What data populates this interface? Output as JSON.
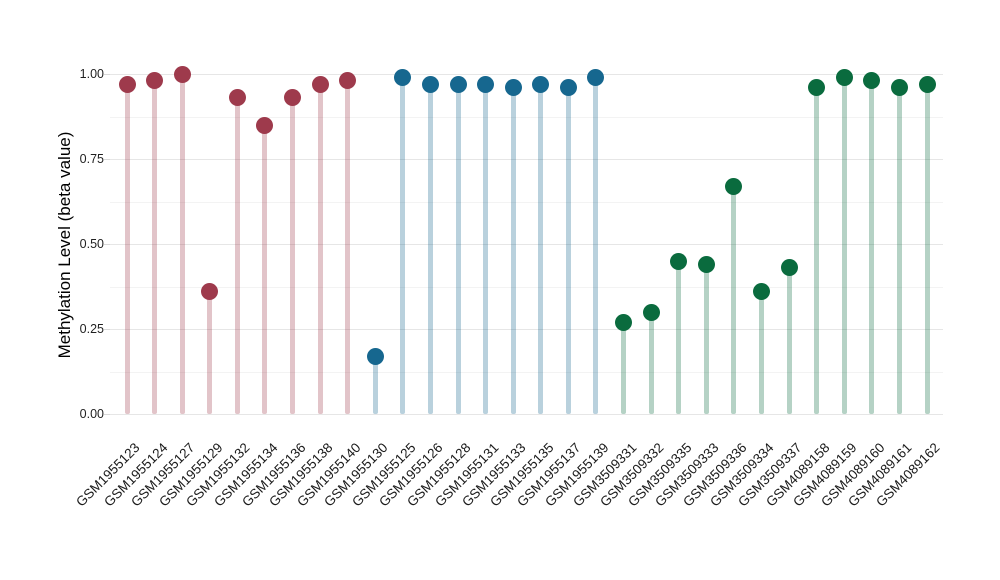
{
  "chart_data": {
    "type": "lollipop",
    "title": "",
    "xlabel": "",
    "ylabel": "Methylation Level (beta value)",
    "ylim": [
      0,
      1.0
    ],
    "grid": true,
    "legend_position": "none",
    "yticks": [
      {
        "value": 0.0,
        "label": "0.00"
      },
      {
        "value": 0.25,
        "label": "0.25"
      },
      {
        "value": 0.5,
        "label": "0.50"
      },
      {
        "value": 0.75,
        "label": "0.75"
      },
      {
        "value": 1.0,
        "label": "1.00"
      }
    ],
    "minor_yticks": [
      0.125,
      0.375,
      0.625,
      0.875
    ],
    "groups": {
      "g1": {
        "color": "#9E3A4C"
      },
      "g2": {
        "color": "#16678F"
      },
      "g3": {
        "color": "#0A6B3E"
      }
    },
    "points": [
      {
        "sample": "GSM1955123",
        "value": 0.97,
        "group": "g1"
      },
      {
        "sample": "GSM1955124",
        "value": 0.98,
        "group": "g1"
      },
      {
        "sample": "GSM1955127",
        "value": 1.0,
        "group": "g1"
      },
      {
        "sample": "GSM1955129",
        "value": 0.36,
        "group": "g1"
      },
      {
        "sample": "GSM1955132",
        "value": 0.93,
        "group": "g1"
      },
      {
        "sample": "GSM1955134",
        "value": 0.85,
        "group": "g1"
      },
      {
        "sample": "GSM1955136",
        "value": 0.93,
        "group": "g1"
      },
      {
        "sample": "GSM1955138",
        "value": 0.97,
        "group": "g1"
      },
      {
        "sample": "GSM1955140",
        "value": 0.98,
        "group": "g1"
      },
      {
        "sample": "GSM1955130",
        "value": 0.17,
        "group": "g2"
      },
      {
        "sample": "GSM1955125",
        "value": 0.99,
        "group": "g2"
      },
      {
        "sample": "GSM1955126",
        "value": 0.97,
        "group": "g2"
      },
      {
        "sample": "GSM1955128",
        "value": 0.97,
        "group": "g2"
      },
      {
        "sample": "GSM1955131",
        "value": 0.97,
        "group": "g2"
      },
      {
        "sample": "GSM1955133",
        "value": 0.96,
        "group": "g2"
      },
      {
        "sample": "GSM1955135",
        "value": 0.97,
        "group": "g2"
      },
      {
        "sample": "GSM1955137",
        "value": 0.96,
        "group": "g2"
      },
      {
        "sample": "GSM1955139",
        "value": 0.99,
        "group": "g2"
      },
      {
        "sample": "GSM3509331",
        "value": 0.27,
        "group": "g3"
      },
      {
        "sample": "GSM3509332",
        "value": 0.3,
        "group": "g3"
      },
      {
        "sample": "GSM3509335",
        "value": 0.45,
        "group": "g3"
      },
      {
        "sample": "GSM3509333",
        "value": 0.44,
        "group": "g3"
      },
      {
        "sample": "GSM3509336",
        "value": 0.67,
        "group": "g3"
      },
      {
        "sample": "GSM3509334",
        "value": 0.36,
        "group": "g3"
      },
      {
        "sample": "GSM3509337",
        "value": 0.43,
        "group": "g3"
      },
      {
        "sample": "GSM4089158",
        "value": 0.96,
        "group": "g3"
      },
      {
        "sample": "GSM4089159",
        "value": 0.99,
        "group": "g3"
      },
      {
        "sample": "GSM4089160",
        "value": 0.98,
        "group": "g3"
      },
      {
        "sample": "GSM4089161",
        "value": 0.96,
        "group": "g3"
      },
      {
        "sample": "GSM4089162",
        "value": 0.97,
        "group": "g3"
      }
    ]
  }
}
